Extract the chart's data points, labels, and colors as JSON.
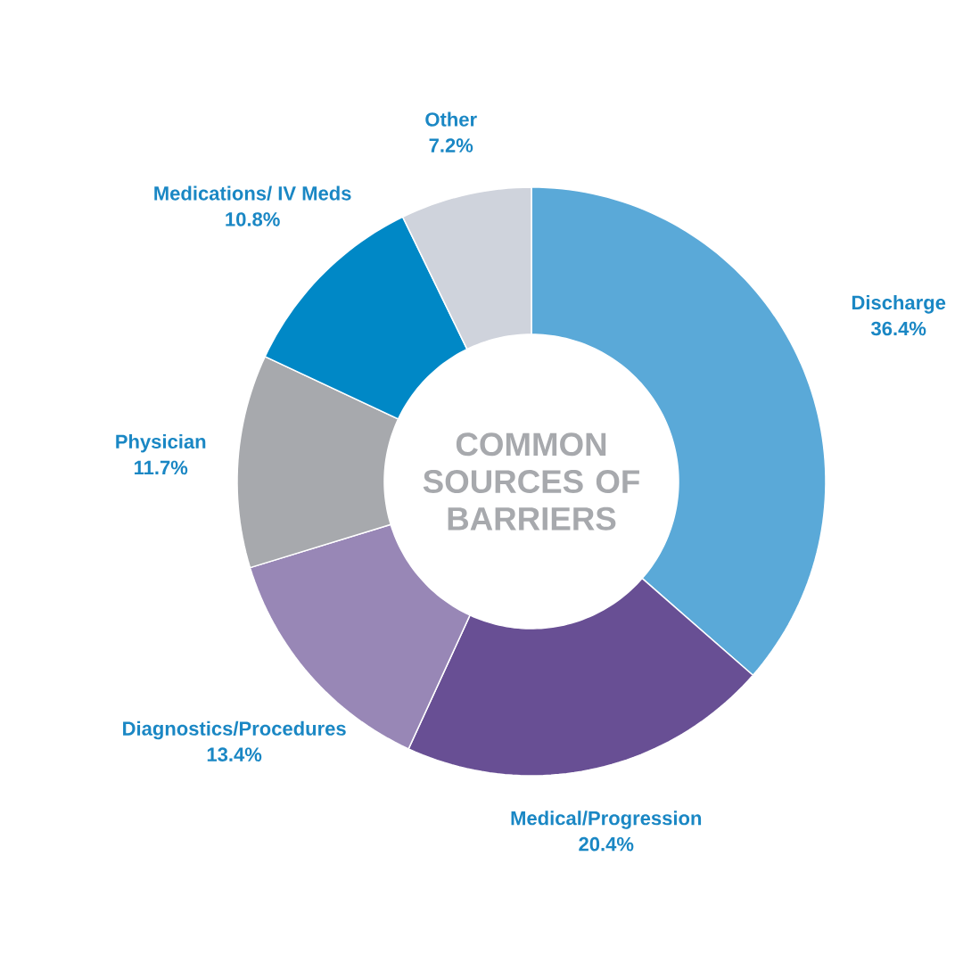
{
  "chart_data": {
    "type": "donut",
    "title": "COMMON SOURCES OF BARRIERS",
    "categories": [
      "Discharge",
      "Medical/Progression",
      "Diagnostics/Procedures",
      "Physician",
      "Medications/ IV Meds",
      "Other"
    ],
    "values": [
      36.4,
      20.4,
      13.4,
      11.7,
      10.8,
      7.2
    ],
    "colors": [
      "#5aa9d8",
      "#684f94",
      "#9887b6",
      "#a7a9ad",
      "#0088c6",
      "#cfd3dc"
    ],
    "value_labels": [
      "36.4%",
      "20.4%",
      "13.4%",
      "11.7%",
      "10.8%",
      "7.2%"
    ]
  }
}
